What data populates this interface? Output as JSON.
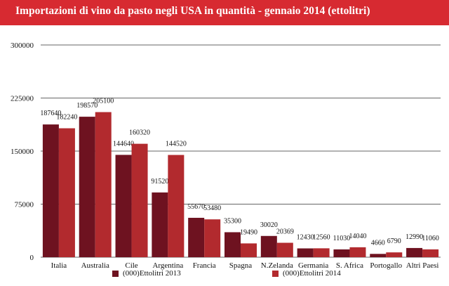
{
  "header": {
    "title": "Importazioni di vino da pasto negli USA in quantità - gennaio 2014 (ettolitri)"
  },
  "colors": {
    "header_bg": "#d72a31",
    "series_2013": "#6e1220",
    "series_2014": "#b22a2e",
    "grid": "#666666"
  },
  "chart_data": {
    "type": "bar",
    "title": "Importazioni di vino da pasto negli USA in quantità - gennaio 2014 (ettolitri)",
    "categories": [
      "Italia",
      "Australia",
      "Cile",
      "Argentina",
      "Francia",
      "Spagna",
      "N.Zelanda",
      "Germania",
      "S. Africa",
      "Portogallo",
      "Altri Paesi"
    ],
    "series": [
      {
        "name": "(000)Ettolitri 2013",
        "values": [
          187640,
          198570,
          144640,
          91520,
          55670,
          35300,
          30020,
          12430,
          11030,
          4660,
          12990
        ]
      },
      {
        "name": "(000)Ettolitri 2014",
        "values": [
          182240,
          205100,
          160320,
          144520,
          53480,
          19490,
          20369,
          12560,
          14040,
          6790,
          11060
        ]
      }
    ],
    "ylim": [
      0,
      300000
    ],
    "yticks": [
      "0",
      "75000",
      "150000",
      "225000",
      "300000"
    ],
    "grid": true,
    "legend": "bottom"
  }
}
